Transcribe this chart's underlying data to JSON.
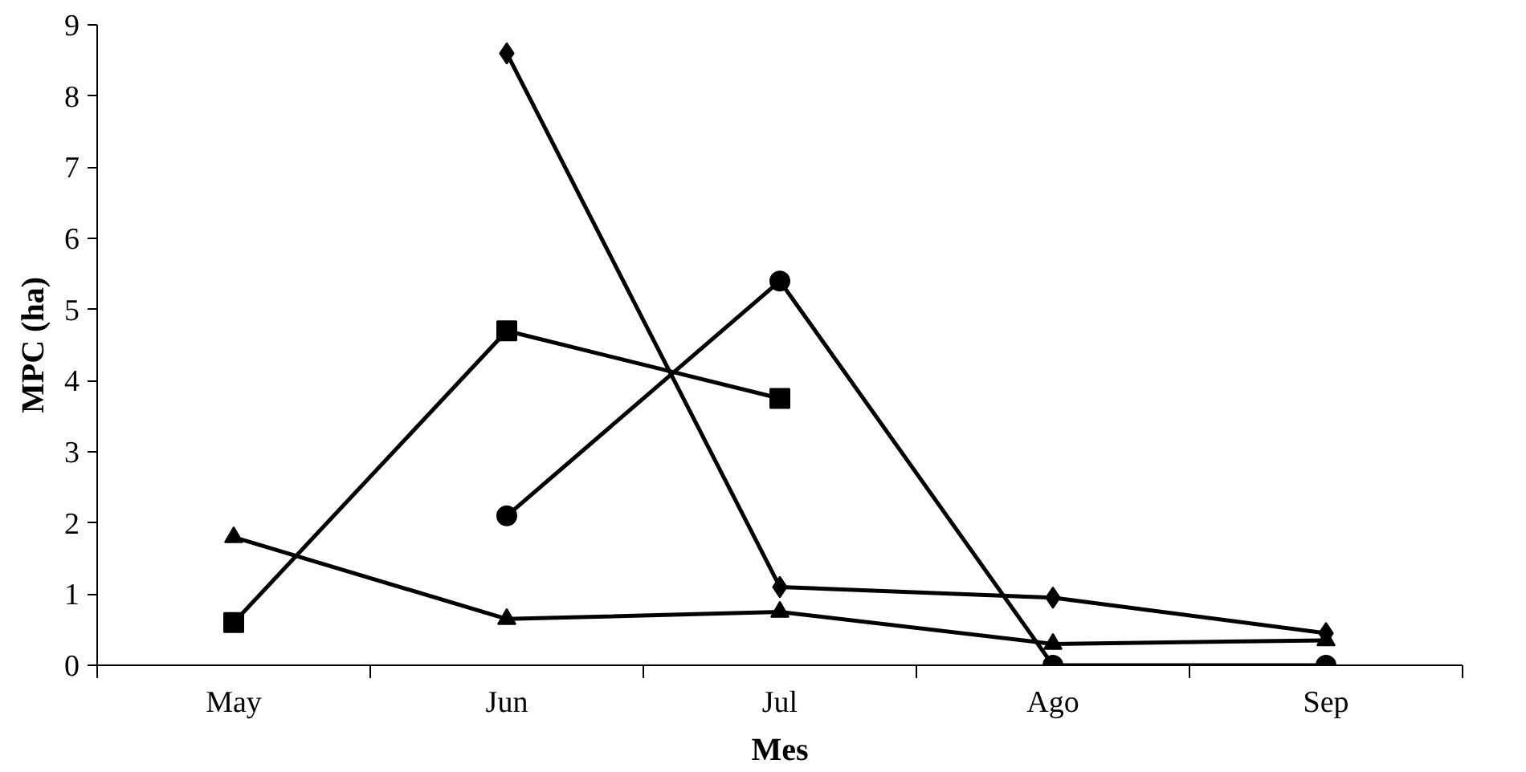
{
  "chart_data": {
    "type": "line",
    "xlabel": "Mes",
    "ylabel": "MPC (ha)",
    "categories": [
      "May",
      "Jun",
      "Jul",
      "Ago",
      "Sep"
    ],
    "ylim": [
      0,
      9
    ],
    "yticks": [
      0,
      1,
      2,
      3,
      4,
      5,
      6,
      7,
      8,
      9
    ],
    "grid": false,
    "line_style": "solid",
    "series": [
      {
        "color": "#000000",
        "marker": "square",
        "values": [
          0.6,
          4.7,
          3.75,
          null,
          null
        ]
      },
      {
        "color": "#000000",
        "marker": "triangle",
        "values": [
          1.8,
          0.65,
          0.75,
          0.3,
          0.35
        ]
      },
      {
        "color": "#000000",
        "marker": "diamond",
        "values": [
          null,
          8.6,
          1.1,
          0.95,
          0.45
        ]
      },
      {
        "color": "#000000",
        "marker": "circle",
        "values": [
          null,
          2.1,
          5.4,
          0,
          0
        ]
      }
    ]
  }
}
